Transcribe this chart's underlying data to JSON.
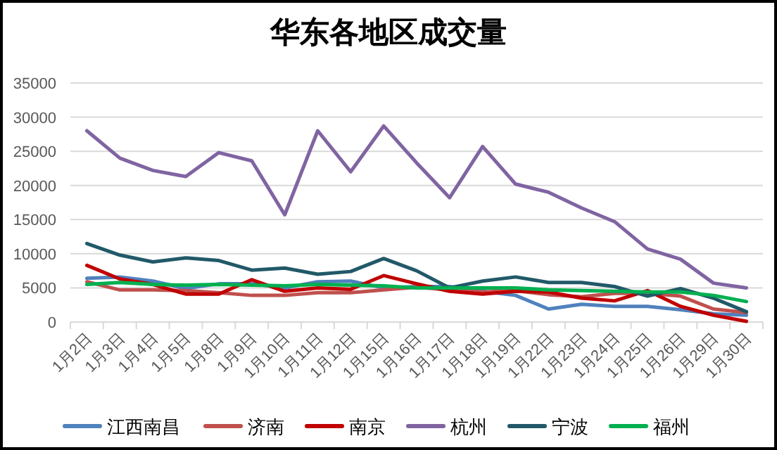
{
  "chart_data": {
    "type": "line",
    "title": "华东各地区成交量",
    "categories": [
      "1月2日",
      "1月3日",
      "1月4日",
      "1月5日",
      "1月8日",
      "1月9日",
      "1月10日",
      "1月11日",
      "1月12日",
      "1月15日",
      "1月16日",
      "1月17日",
      "1月18日",
      "1月19日",
      "1月22日",
      "1月23日",
      "1月24日",
      "1月25日",
      "1月26日",
      "1月29日",
      "1月30日"
    ],
    "series": [
      {
        "name": "江西南昌",
        "color": "#4f81bd",
        "values": [
          6400,
          6600,
          6000,
          4900,
          5600,
          5600,
          5000,
          5900,
          6000,
          5000,
          5200,
          5200,
          4500,
          3900,
          1900,
          2600,
          2300,
          2300,
          1800,
          1200,
          1000
        ]
      },
      {
        "name": "济南",
        "color": "#c0504d",
        "values": [
          5900,
          4700,
          4700,
          4600,
          4300,
          3900,
          3900,
          4300,
          4300,
          4700,
          5100,
          4700,
          4400,
          4600,
          4000,
          3700,
          4200,
          4200,
          3800,
          1900,
          1400
        ]
      },
      {
        "name": "南京",
        "color": "#c00000",
        "values": [
          8300,
          6300,
          5500,
          4100,
          4100,
          6200,
          4500,
          5000,
          4800,
          6800,
          5600,
          4500,
          4100,
          4500,
          4400,
          3500,
          3100,
          4600,
          2300,
          1000,
          100
        ]
      },
      {
        "name": "杭州",
        "color": "#8064a2",
        "values": [
          28000,
          24000,
          22200,
          21300,
          24800,
          23600,
          15700,
          28000,
          22000,
          28700,
          23300,
          18200,
          25700,
          20200,
          19000,
          16700,
          14700,
          10700,
          9200,
          5700,
          5000
        ]
      },
      {
        "name": "宁波",
        "color": "#215968",
        "values": [
          11500,
          9800,
          8800,
          9400,
          9000,
          7600,
          7900,
          7000,
          7400,
          9300,
          7500,
          5000,
          6000,
          6600,
          5800,
          5800,
          5200,
          3800,
          4900,
          3500,
          1500
        ]
      },
      {
        "name": "福州",
        "color": "#00b050",
        "values": [
          5500,
          5800,
          5500,
          5400,
          5500,
          5400,
          5300,
          5500,
          5400,
          5300,
          5000,
          5000,
          5000,
          5000,
          4700,
          4600,
          4500,
          4400,
          4400,
          3900,
          3000
        ]
      }
    ],
    "ylim": [
      0,
      35000
    ],
    "yticks": [
      0,
      5000,
      10000,
      15000,
      20000,
      25000,
      30000,
      35000
    ],
    "grid": "y",
    "legend": "bottom",
    "marker": "none",
    "line_style": "solid"
  }
}
